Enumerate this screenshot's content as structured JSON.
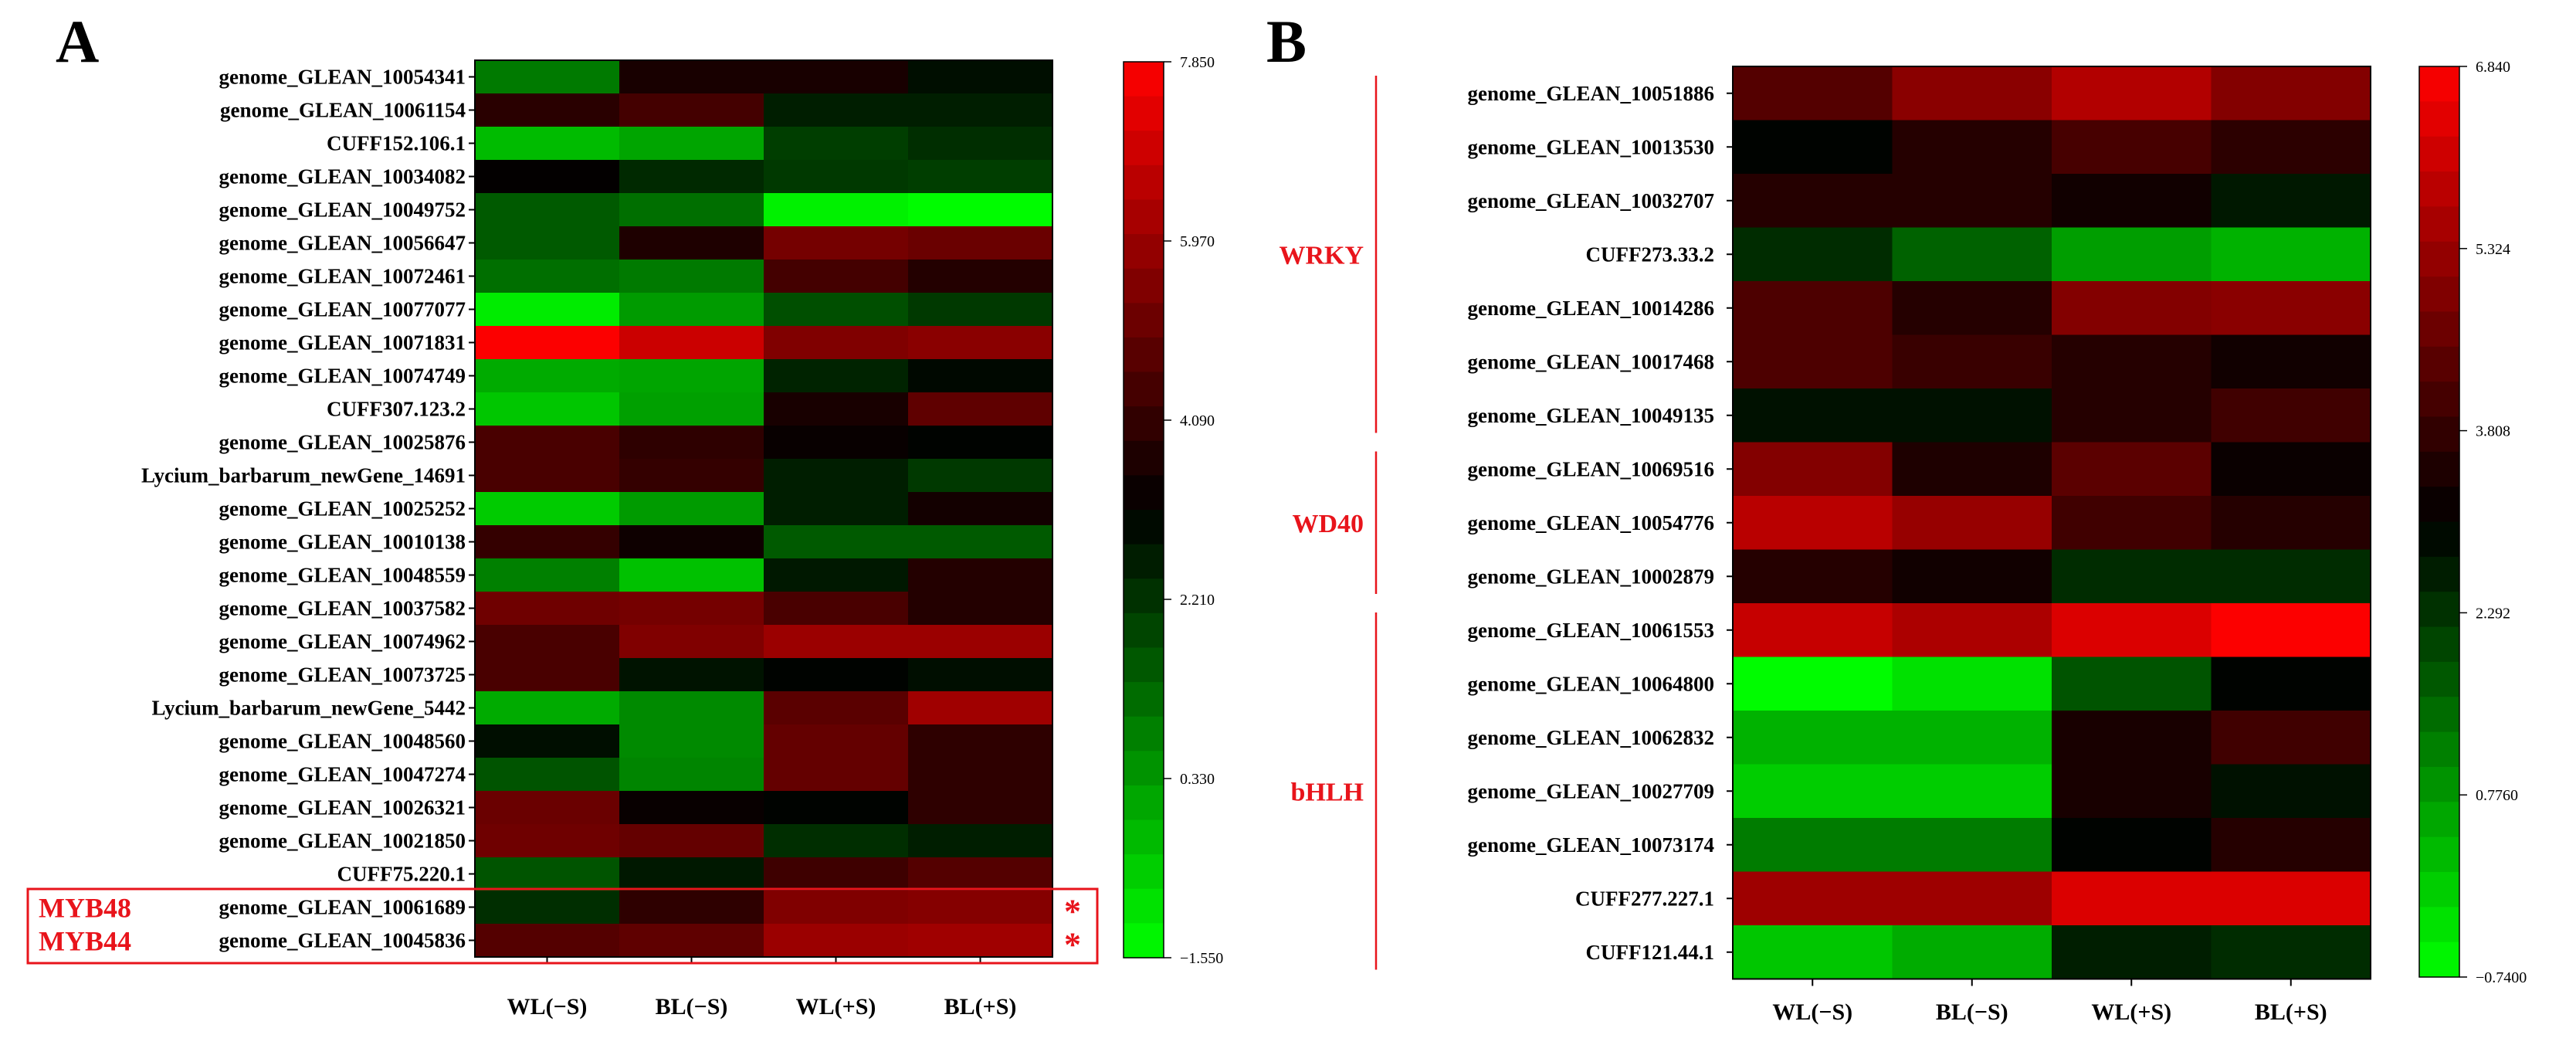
{
  "chart_data": [
    {
      "type": "heatmap",
      "panel": "A",
      "columns": [
        "WL(−S)",
        "BL(−S)",
        "WL(+S)",
        "BL(+S)"
      ],
      "rows": [
        "genome_GLEAN_10054341",
        "genome_GLEAN_10061154",
        "CUFF152.106.1",
        "genome_GLEAN_10034082",
        "genome_GLEAN_10049752",
        "genome_GLEAN_10056647",
        "genome_GLEAN_10072461",
        "genome_GLEAN_10077077",
        "genome_GLEAN_10071831",
        "genome_GLEAN_10074749",
        "CUFF307.123.2",
        "genome_GLEAN_10025876",
        "Lycium_barbarum_newGene_14691",
        "genome_GLEAN_10025252",
        "genome_GLEAN_10010138",
        "genome_GLEAN_10048559",
        "genome_GLEAN_10037582",
        "genome_GLEAN_10074962",
        "genome_GLEAN_10073725",
        "Lycium_barbarum_newGene_5442",
        "genome_GLEAN_10048560",
        "genome_GLEAN_10047274",
        "genome_GLEAN_10026321",
        "genome_GLEAN_10021850",
        "CUFF75.220.1",
        "genome_GLEAN_10061689",
        "genome_GLEAN_10045836"
      ],
      "values": [
        [
          0.9,
          3.6,
          3.6,
          2.9
        ],
        [
          3.9,
          4.4,
          2.6,
          2.6
        ],
        [
          -0.3,
          0.1,
          2.0,
          2.3
        ],
        [
          3.2,
          2.4,
          2.1,
          2.0
        ],
        [
          1.5,
          1.1,
          -1.3,
          -1.5
        ],
        [
          1.5,
          3.7,
          5.3,
          5.1
        ],
        [
          1.1,
          0.9,
          4.4,
          3.8
        ],
        [
          -1.2,
          0.3,
          1.7,
          2.1
        ],
        [
          7.8,
          6.9,
          5.5,
          5.7
        ],
        [
          0.0,
          0.1,
          2.5,
          3.0
        ],
        [
          -0.5,
          0.2,
          3.6,
          4.9
        ],
        [
          4.5,
          4.0,
          3.3,
          3.1
        ],
        [
          4.5,
          4.1,
          2.6,
          2.1
        ],
        [
          -0.6,
          0.3,
          2.6,
          3.5
        ],
        [
          4.1,
          3.4,
          1.5,
          1.5
        ],
        [
          0.8,
          -0.4,
          2.7,
          3.8
        ],
        [
          5.2,
          5.3,
          4.5,
          3.8
        ],
        [
          4.5,
          5.5,
          6.0,
          6.0
        ],
        [
          4.5,
          2.8,
          3.1,
          2.9
        ],
        [
          0.0,
          0.6,
          4.8,
          6.1
        ],
        [
          2.9,
          0.6,
          5.0,
          4.0
        ],
        [
          1.6,
          0.7,
          5.0,
          4.0
        ],
        [
          5.1,
          3.3,
          3.1,
          4.0
        ],
        [
          5.2,
          5.0,
          2.3,
          2.6
        ],
        [
          1.6,
          2.7,
          4.3,
          4.7
        ],
        [
          2.3,
          4.0,
          5.5,
          5.6
        ],
        [
          4.7,
          4.9,
          6.0,
          6.1
        ]
      ],
      "colorbar": {
        "min": -1.55,
        "max": 7.85,
        "ticks": [
          "7.850",
          "5.970",
          "4.090",
          "2.210",
          "0.330",
          "−1.550"
        ]
      },
      "highlights": [
        {
          "gene": "genome_GLEAN_10061689",
          "label": "MYB48",
          "mark": "*"
        },
        {
          "gene": "genome_GLEAN_10045836",
          "label": "MYB44",
          "mark": "*"
        }
      ]
    },
    {
      "type": "heatmap",
      "panel": "B",
      "columns": [
        "WL(−S)",
        "BL(−S)",
        "WL(+S)",
        "BL(+S)"
      ],
      "rows": [
        "genome_GLEAN_10051886",
        "genome_GLEAN_10013530",
        "genome_GLEAN_10032707",
        "CUFF273.33.2",
        "genome_GLEAN_10014286",
        "genome_GLEAN_10017468",
        "genome_GLEAN_10049135",
        "genome_GLEAN_10069516",
        "genome_GLEAN_10054776",
        "genome_GLEAN_10002879",
        "genome_GLEAN_10061553",
        "genome_GLEAN_10064800",
        "genome_GLEAN_10062832",
        "genome_GLEAN_10027709",
        "genome_GLEAN_10073174",
        "CUFF277.227.1",
        "CUFF121.44.1"
      ],
      "values": [
        [
          4.3,
          5.1,
          5.7,
          5.0
        ],
        [
          3.0,
          3.6,
          4.1,
          3.7
        ],
        [
          3.6,
          3.6,
          3.3,
          2.7
        ],
        [
          2.4,
          1.6,
          0.7,
          0.4
        ],
        [
          4.2,
          3.6,
          5.0,
          5.1
        ],
        [
          4.2,
          3.9,
          3.6,
          3.3
        ],
        [
          2.8,
          2.8,
          3.6,
          4.0
        ],
        [
          5.0,
          3.5,
          4.4,
          3.2
        ],
        [
          5.8,
          5.3,
          4.0,
          3.6
        ],
        [
          3.6,
          3.3,
          2.4,
          2.4
        ],
        [
          6.0,
          5.6,
          6.3,
          6.8
        ],
        [
          -0.7,
          -0.3,
          1.8,
          3.0
        ],
        [
          0.4,
          0.4,
          3.4,
          4.0
        ],
        [
          0.0,
          0.0,
          3.4,
          2.8
        ],
        [
          1.2,
          1.2,
          3.0,
          3.6
        ],
        [
          5.4,
          5.4,
          6.3,
          6.3
        ],
        [
          0.1,
          0.5,
          2.6,
          2.4
        ]
      ],
      "colorbar": {
        "min": -0.74,
        "max": 6.84,
        "ticks": [
          "6.840",
          "5.324",
          "3.808",
          "2.292",
          "0.7760",
          "−0.7400"
        ]
      },
      "groups": [
        {
          "label": "WRKY",
          "from": 0,
          "to": 6
        },
        {
          "label": "WD40",
          "from": 7,
          "to": 9
        },
        {
          "label": "bHLH",
          "from": 10,
          "to": 16
        }
      ]
    }
  ],
  "panel_labels": [
    "A",
    "B"
  ]
}
